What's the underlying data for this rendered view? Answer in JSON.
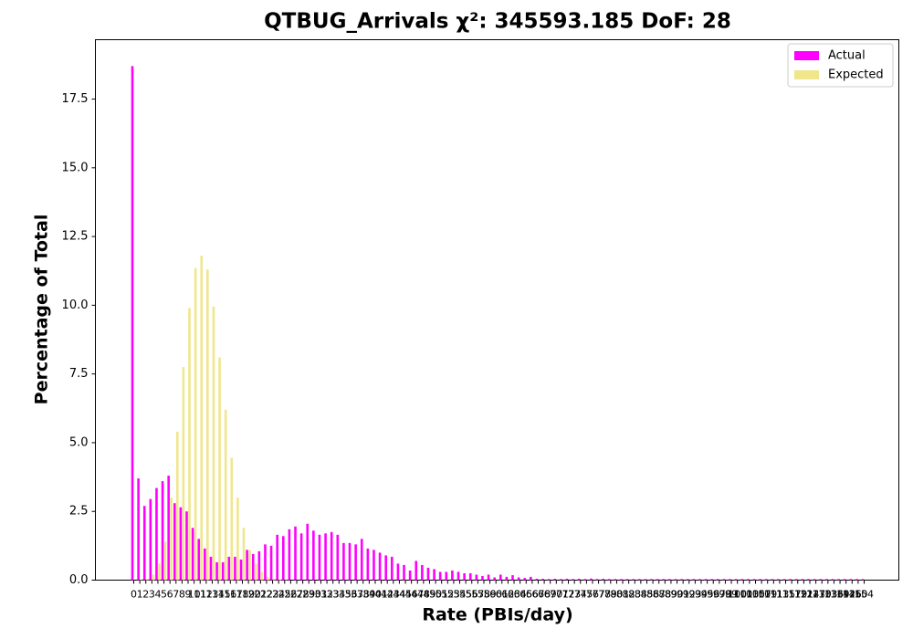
{
  "chart_data": {
    "type": "bar",
    "title": "QTBUG_Arrivals χ²: 345593.185 DoF: 28",
    "xlabel": "Rate (PBIs/day)",
    "ylabel": "Percentage of Total",
    "categories": [
      "0",
      "1",
      "2",
      "3",
      "4",
      "5",
      "6",
      "7",
      "8",
      "9",
      "10",
      "11",
      "12",
      "13",
      "14",
      "15",
      "16",
      "17",
      "18",
      "19",
      "20",
      "21",
      "22",
      "23",
      "24",
      "25",
      "26",
      "27",
      "28",
      "29",
      "30",
      "31",
      "32",
      "33",
      "34",
      "35",
      "36",
      "37",
      "38",
      "39",
      "40",
      "41",
      "42",
      "43",
      "44",
      "45",
      "46",
      "47",
      "48",
      "49",
      "50",
      "51",
      "52",
      "53",
      "54",
      "55",
      "56",
      "57",
      "58",
      "59",
      "60",
      "61",
      "62",
      "63",
      "64",
      "65",
      "66",
      "67",
      "68",
      "69",
      "70",
      "71",
      "72",
      "73",
      "74",
      "75",
      "76",
      "77",
      "78",
      "79",
      "80",
      "81",
      "82",
      "83",
      "84",
      "85",
      "86",
      "87",
      "88",
      "89",
      "90",
      "91",
      "92",
      "93",
      "94",
      "95",
      "96",
      "97",
      "98",
      "99",
      "100",
      "101",
      "103",
      "105",
      "107",
      "109",
      "111",
      "113",
      "115",
      "117",
      "119",
      "121",
      "124",
      "127",
      "130",
      "133",
      "136",
      "139",
      "142",
      "146",
      "150",
      "154"
    ],
    "series": [
      {
        "name": "Actual",
        "color": "#ff00ff",
        "values": [
          18.7,
          3.7,
          2.7,
          2.95,
          3.35,
          3.6,
          3.8,
          2.8,
          2.65,
          2.5,
          1.9,
          1.5,
          1.15,
          0.85,
          0.65,
          0.65,
          0.85,
          0.85,
          0.75,
          1.1,
          0.95,
          1.05,
          1.3,
          1.25,
          1.65,
          1.6,
          1.85,
          1.95,
          1.7,
          2.05,
          1.8,
          1.65,
          1.7,
          1.75,
          1.65,
          1.35,
          1.35,
          1.3,
          1.5,
          1.15,
          1.1,
          1.0,
          0.9,
          0.85,
          0.6,
          0.55,
          0.35,
          0.7,
          0.55,
          0.45,
          0.4,
          0.3,
          0.3,
          0.35,
          0.3,
          0.25,
          0.25,
          0.2,
          0.15,
          0.2,
          0.1,
          0.2,
          0.12,
          0.18,
          0.1,
          0.08,
          0.12,
          0.05,
          0.05,
          0.04,
          0.05,
          0.04,
          0.05,
          0.04,
          0.05,
          0.04,
          0.06,
          0.04,
          0.05,
          0.04,
          0.04,
          0.04,
          0.04,
          0.04,
          0.04,
          0.04,
          0.04,
          0.04,
          0.04,
          0.04,
          0.04,
          0.04,
          0.04,
          0.04,
          0.04,
          0.04,
          0.04,
          0.04,
          0.04,
          0.04,
          0.04,
          0.04,
          0.04,
          0.04,
          0.04,
          0.04,
          0.04,
          0.04,
          0.04,
          0.04,
          0.04,
          0.04,
          0.04,
          0.04,
          0.04,
          0.04,
          0.04,
          0.04,
          0.04,
          0.04,
          0.04,
          0.04
        ]
      },
      {
        "name": "Expected",
        "color": "#f0e68c",
        "values": [
          0.0,
          0.01,
          0.05,
          0.2,
          0.6,
          1.4,
          3.0,
          5.4,
          7.75,
          9.9,
          11.35,
          11.8,
          11.3,
          9.95,
          8.1,
          6.2,
          4.45,
          3.0,
          1.9,
          1.1,
          0.6,
          0.3,
          0.12,
          0.05,
          0.02,
          0.01,
          0,
          0,
          0,
          0,
          0,
          0,
          0,
          0,
          0,
          0,
          0,
          0,
          0,
          0,
          0,
          0,
          0,
          0,
          0,
          0,
          0,
          0,
          0,
          0,
          0,
          0,
          0,
          0,
          0,
          0,
          0,
          0,
          0,
          0,
          0,
          0,
          0,
          0,
          0,
          0,
          0,
          0,
          0,
          0,
          0,
          0,
          0,
          0,
          0,
          0,
          0,
          0,
          0,
          0,
          0,
          0,
          0,
          0,
          0,
          0,
          0,
          0,
          0,
          0,
          0,
          0,
          0,
          0,
          0,
          0,
          0,
          0,
          0,
          0,
          0,
          0,
          0,
          0,
          0,
          0,
          0,
          0,
          0,
          0,
          0,
          0,
          0,
          0,
          0,
          0,
          0,
          0,
          0,
          0,
          0,
          0
        ]
      }
    ],
    "ylim": [
      0,
      19.66
    ],
    "yticks": [
      {
        "value": 0,
        "label": "0.0"
      },
      2.5,
      {
        "value": 5,
        "label": "5.0"
      },
      7.5,
      {
        "value": 10,
        "label": "10.0"
      },
      12.5,
      {
        "value": 15,
        "label": "15.0"
      },
      17.5
    ],
    "legend": "upper right"
  }
}
